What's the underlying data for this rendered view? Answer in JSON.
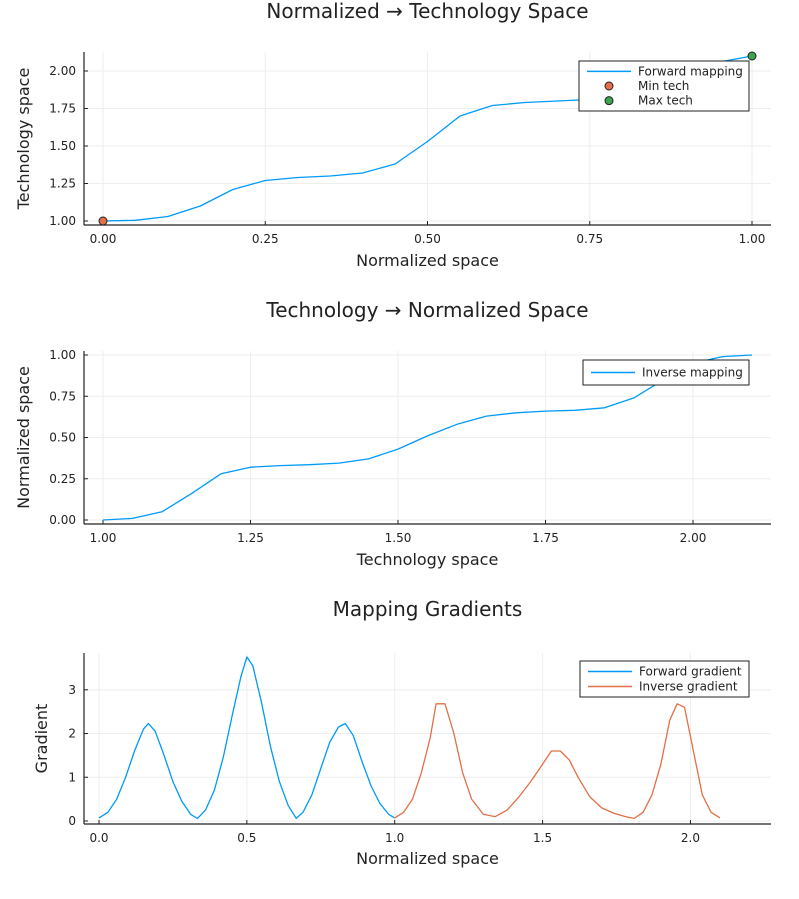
{
  "colors": {
    "blue": "#009AFA",
    "orange": "#E26F46",
    "green": "#3DA44D"
  },
  "chart_data": [
    {
      "type": "line",
      "title": "Normalized → Technology Space",
      "xlabel": "Normalized space",
      "ylabel": "Technology space",
      "xlim": [
        0,
        1
      ],
      "ylim": [
        1.0,
        2.1
      ],
      "xticks": [
        0,
        0.25,
        0.5,
        0.75,
        1.0
      ],
      "xtick_labels": [
        "0.00",
        "0.25",
        "0.50",
        "0.75",
        "1.00"
      ],
      "yticks": [
        1.0,
        1.25,
        1.5,
        1.75,
        2.0
      ],
      "ytick_labels": [
        "1.00",
        "1.25",
        "1.50",
        "1.75",
        "2.00"
      ],
      "legend": "top-right",
      "series": [
        {
          "name": "Forward mapping",
          "kind": "line",
          "color": "#009AFA",
          "x": [
            0,
            0.05,
            0.1,
            0.15,
            0.2,
            0.25,
            0.3,
            0.35,
            0.4,
            0.45,
            0.5,
            0.55,
            0.6,
            0.65,
            0.7,
            0.75,
            0.8,
            0.85,
            0.9,
            0.95,
            1.0
          ],
          "y": [
            1.0,
            1.005,
            1.03,
            1.1,
            1.21,
            1.27,
            1.29,
            1.3,
            1.32,
            1.38,
            1.53,
            1.7,
            1.77,
            1.79,
            1.8,
            1.81,
            1.83,
            1.88,
            1.97,
            2.06,
            2.1
          ]
        },
        {
          "name": "Min tech",
          "kind": "point",
          "color": "#E26F46",
          "x": [
            0
          ],
          "y": [
            1.0
          ]
        },
        {
          "name": "Max tech",
          "kind": "point",
          "color": "#3DA44D",
          "x": [
            1.0
          ],
          "y": [
            2.1
          ]
        }
      ]
    },
    {
      "type": "line",
      "title": "Technology → Normalized Space",
      "xlabel": "Technology space",
      "ylabel": "Normalized space",
      "xlim": [
        1.0,
        2.1
      ],
      "ylim": [
        0,
        1
      ],
      "xticks": [
        1.0,
        1.25,
        1.5,
        1.75,
        2.0
      ],
      "xtick_labels": [
        "1.00",
        "1.25",
        "1.50",
        "1.75",
        "2.00"
      ],
      "yticks": [
        0,
        0.25,
        0.5,
        0.75,
        1.0
      ],
      "ytick_labels": [
        "0.00",
        "0.25",
        "0.50",
        "0.75",
        "1.00"
      ],
      "legend": "top-right",
      "series": [
        {
          "name": "Inverse mapping",
          "kind": "line",
          "color": "#009AFA",
          "x": [
            1.0,
            1.05,
            1.1,
            1.15,
            1.2,
            1.25,
            1.3,
            1.35,
            1.4,
            1.45,
            1.5,
            1.55,
            1.6,
            1.65,
            1.7,
            1.75,
            1.8,
            1.85,
            1.9,
            1.95,
            2.0,
            2.05,
            2.1
          ],
          "y": [
            0.0,
            0.01,
            0.05,
            0.16,
            0.28,
            0.32,
            0.33,
            0.335,
            0.345,
            0.37,
            0.43,
            0.51,
            0.58,
            0.63,
            0.65,
            0.66,
            0.665,
            0.68,
            0.74,
            0.85,
            0.95,
            0.99,
            1.0
          ]
        }
      ]
    },
    {
      "type": "line",
      "title": "Mapping Gradients",
      "xlabel": "Normalized space",
      "ylabel": "Gradient",
      "xlim": [
        0,
        2.1
      ],
      "ylim": [
        0,
        3.75
      ],
      "xticks": [
        0,
        0.5,
        1.0,
        1.5,
        2.0
      ],
      "xtick_labels": [
        "0.0",
        "0.5",
        "1.0",
        "1.5",
        "2.0"
      ],
      "yticks": [
        0,
        1,
        2,
        3
      ],
      "ytick_labels": [
        "0",
        "1",
        "2",
        "3"
      ],
      "legend": "top-right",
      "series": [
        {
          "name": "Forward gradient",
          "kind": "line",
          "color": "#009AFA",
          "x": [
            0.0,
            0.03,
            0.06,
            0.09,
            0.12,
            0.15,
            0.167,
            0.19,
            0.22,
            0.25,
            0.28,
            0.31,
            0.333,
            0.36,
            0.39,
            0.42,
            0.45,
            0.48,
            0.5,
            0.52,
            0.55,
            0.58,
            0.61,
            0.64,
            0.667,
            0.69,
            0.72,
            0.75,
            0.78,
            0.81,
            0.833,
            0.86,
            0.89,
            0.92,
            0.95,
            0.98,
            1.0
          ],
          "y": [
            0.07,
            0.2,
            0.5,
            1.0,
            1.6,
            2.1,
            2.23,
            2.05,
            1.5,
            0.9,
            0.45,
            0.15,
            0.06,
            0.25,
            0.7,
            1.45,
            2.4,
            3.3,
            3.75,
            3.55,
            2.7,
            1.7,
            0.9,
            0.35,
            0.06,
            0.2,
            0.6,
            1.2,
            1.8,
            2.15,
            2.23,
            1.95,
            1.35,
            0.8,
            0.4,
            0.15,
            0.07
          ]
        },
        {
          "name": "Inverse gradient",
          "kind": "line",
          "color": "#E26F46",
          "x": [
            1.0,
            1.03,
            1.06,
            1.09,
            1.12,
            1.14,
            1.17,
            1.2,
            1.23,
            1.26,
            1.3,
            1.34,
            1.38,
            1.42,
            1.46,
            1.5,
            1.53,
            1.56,
            1.59,
            1.62,
            1.66,
            1.7,
            1.74,
            1.78,
            1.81,
            1.84,
            1.87,
            1.9,
            1.93,
            1.955,
            1.98,
            2.01,
            2.04,
            2.07,
            2.1
          ],
          "y": [
            0.07,
            0.2,
            0.5,
            1.1,
            1.9,
            2.68,
            2.68,
            2.0,
            1.1,
            0.5,
            0.15,
            0.1,
            0.25,
            0.55,
            0.9,
            1.3,
            1.6,
            1.6,
            1.4,
            1.0,
            0.55,
            0.3,
            0.18,
            0.1,
            0.06,
            0.2,
            0.6,
            1.3,
            2.3,
            2.68,
            2.6,
            1.6,
            0.6,
            0.2,
            0.07
          ]
        }
      ]
    }
  ]
}
